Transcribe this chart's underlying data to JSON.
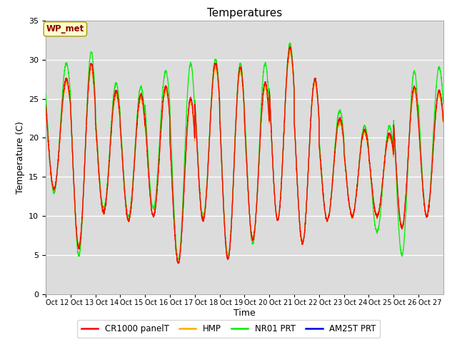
{
  "title": "Temperatures",
  "xlabel": "Time",
  "ylabel": "Temperature (C)",
  "ylim": [
    0,
    35
  ],
  "line_colors": {
    "CR1000 panelT": "#ff0000",
    "HMP": "#ffaa00",
    "NR01 PRT": "#00ee00",
    "AM25T PRT": "#0000ee"
  },
  "wp_met_label": "WP_met",
  "plot_bg_color": "#dcdcdc",
  "legend_entries": [
    "CR1000 panelT",
    "HMP",
    "NR01 PRT",
    "AM25T PRT"
  ],
  "xtick_labels": [
    "Oct 12",
    "Oct 13",
    "Oct 14",
    "Oct 15",
    "Oct 16",
    "Oct 17",
    "Oct 18",
    "Oct 19",
    "Oct 20",
    "Oct 21",
    "Oct 22",
    "Oct 23",
    "Oct 24",
    "Oct 25",
    "Oct 26",
    "Oct 27"
  ],
  "day_peaks": [
    27.5,
    29.5,
    26.0,
    25.5,
    26.5,
    25.0,
    29.5,
    29.0,
    27.0,
    31.5,
    27.5,
    22.5,
    21.0,
    20.5,
    26.5,
    26.0
  ],
  "day_troughs": [
    13.5,
    6.0,
    10.5,
    9.5,
    10.0,
    4.0,
    9.5,
    4.5,
    7.0,
    9.5,
    6.5,
    9.5,
    10.0,
    10.0,
    8.5,
    10.0
  ],
  "nro1_peaks": [
    29.5,
    31.0,
    27.0,
    26.5,
    28.5,
    29.5,
    30.0,
    29.5,
    29.5,
    32.0,
    27.5,
    23.5,
    21.5,
    21.5,
    28.5,
    29.0
  ],
  "nro1_troughs": [
    13.0,
    5.0,
    11.0,
    10.0,
    11.0,
    4.5,
    10.0,
    5.0,
    6.5,
    9.5,
    6.5,
    9.5,
    10.0,
    8.0,
    5.0,
    10.0
  ]
}
